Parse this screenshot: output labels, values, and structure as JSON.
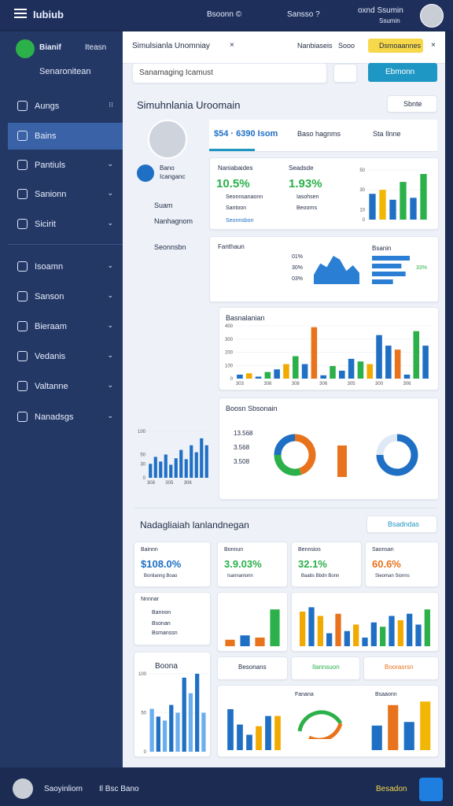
{
  "header": {
    "app": "Iubiub",
    "items": [
      "Bsoonn ©",
      "Sansso ?",
      "oxnd Ssumin"
    ],
    "sub": "Ssumin"
  },
  "sidebar": {
    "brand": "Bianif",
    "brand_right": "Iteasn",
    "search": "Senaronitean",
    "items": [
      "Aungs",
      "Bains",
      "Pantiuls",
      "Sanionn",
      "Sicirit",
      "Isoamn",
      "Sanson",
      "Bieraam",
      "Vedanis",
      "Valtanne",
      "Nanadsgs"
    ]
  },
  "tabbar": {
    "title": "Simulsianla Unomniay",
    "links": [
      "Nanbiaseis",
      "Sooo"
    ],
    "button": "Dsmoaannes"
  },
  "search": {
    "placeholder": "Sanamaging Icamust",
    "button": "Ebmonn"
  },
  "section1": {
    "title": "Simuhnlania Uroomain",
    "dropdown": "Sbnte"
  },
  "profile": {
    "name": "Bano",
    "role": "Icanganc",
    "links": [
      "Suam",
      "Nanhagnom",
      "Seonnsbn"
    ]
  },
  "tabs": [
    "$54 · 6390 Isom",
    "Baso hagnms",
    "Sta Ilnne"
  ],
  "kpi": {
    "labels": [
      "Naniabaides",
      "Seadsde"
    ],
    "values": [
      "10.5%",
      "1.93%"
    ],
    "legend": [
      "Seonnsanaonn",
      "Iasohsen",
      "Santoon",
      "Beoorns"
    ],
    "link": "Seonnsbon"
  },
  "mid": {
    "title": "Fanthaun",
    "right_title": "Bsanin",
    "legend": [
      "01%",
      "30%",
      "03%"
    ],
    "pct": "33%"
  },
  "main_chart_title": "Basnalanian",
  "donut_title": "Boosn Sbsonain",
  "donut_legend": [
    "13.568",
    "3.568",
    "3.508"
  ],
  "section2": {
    "title": "Nadagliaiah lanlandnegan",
    "button": "Bsadndas"
  },
  "kpi2": [
    {
      "label": "Bainnn",
      "value": "$108.0%",
      "note": "Bonlianng Boao"
    },
    {
      "label": "Bonnun",
      "value": "3.9.03%",
      "note": "Isannanionn"
    },
    {
      "label": "Bennsios",
      "value": "32.1%",
      "note": "Baabs Bbdn Bonn"
    },
    {
      "label": "Saonsan",
      "value": "60.6%",
      "note": "Sieoman Sionns"
    }
  ],
  "list": {
    "title": "Nnnnar",
    "items": [
      "Bannon",
      "Bsonan",
      "Bsmanssn"
    ]
  },
  "row3": {
    "left": "Boona",
    "buttons": [
      "Besonans",
      "Ilannsuon",
      "Boorasrsn"
    ]
  },
  "bottom_titles": [
    "Fanana",
    "Bsaaonn"
  ],
  "footer": {
    "name": "Saoyinliom",
    "mid": "Il Bsc Bano",
    "right": "Besadon"
  },
  "charts": {
    "kpi_bar": {
      "type": "bar",
      "ylim": [
        0,
        50
      ],
      "yticks": [
        0,
        10,
        30,
        50
      ],
      "values": [
        26,
        30,
        20,
        38,
        22,
        46
      ],
      "colors": [
        "#1f6fc4",
        "#f2b705",
        "#1f6fc4",
        "#2bb04a",
        "#1f6fc4",
        "#2bb04a"
      ]
    },
    "area": {
      "type": "area",
      "color": "#2a7fd4",
      "values": [
        10,
        22,
        18,
        30,
        26,
        14,
        20,
        12
      ]
    },
    "hbar": {
      "type": "hbar",
      "color": "#2a7fd4",
      "values": [
        9,
        7,
        8,
        5
      ]
    },
    "main_bar": {
      "type": "bar",
      "ylim": [
        0,
        400
      ],
      "yticks": [
        0,
        100,
        200,
        300,
        400
      ],
      "categories": [
        "303",
        null,
        null,
        "306",
        null,
        null,
        "308",
        null,
        null,
        "306",
        null,
        null,
        "305",
        null,
        null,
        "300",
        null,
        null,
        "306",
        null,
        null
      ],
      "values": [
        30,
        40,
        15,
        50,
        70,
        110,
        170,
        110,
        390,
        25,
        95,
        60,
        150,
        130,
        110,
        330,
        250,
        220,
        30,
        360,
        250
      ],
      "colors": [
        "#1f6fc4",
        "#f2a900",
        "#1f6fc4",
        "#2bb04a",
        "#1f6fc4",
        "#f2a900",
        "#2bb04a",
        "#1f6fc4",
        "#e8731c",
        "#1f6fc4",
        "#2bb04a",
        "#1f6fc4",
        "#1f6fc4",
        "#2bb04a",
        "#f2a900",
        "#1f6fc4",
        "#1f6fc4",
        "#e8731c",
        "#1f6fc4",
        "#2bb04a",
        "#1f6fc4"
      ]
    },
    "left_bar": {
      "type": "bar",
      "ylim": [
        0,
        100
      ],
      "yticks": [
        0,
        30,
        50,
        100
      ],
      "categories": [
        "308",
        null,
        null,
        "305",
        null,
        null,
        "306",
        null,
        null,
        null
      ],
      "values": [
        30,
        45,
        35,
        50,
        28,
        42,
        60,
        40,
        70,
        55,
        85,
        70
      ],
      "colors": [
        "#1f6fc4",
        "#1f6fc4",
        "#1f6fc4",
        "#1f6fc4",
        "#1f6fc4",
        "#1f6fc4",
        "#1f6fc4",
        "#1f6fc4",
        "#1f6fc4",
        "#1f6fc4",
        "#1f6fc4",
        "#1f6fc4"
      ]
    },
    "donut": {
      "type": "pie",
      "values": [
        45,
        30,
        25
      ],
      "colors": [
        "#e8731c",
        "#2bb04a",
        "#1f6fc4"
      ]
    },
    "donut2": {
      "type": "pie",
      "values": [
        75,
        25
      ],
      "colors": [
        "#1f6fc4",
        "#dfe8f5"
      ]
    },
    "card_bar": {
      "type": "bar",
      "ylim": [
        0,
        40
      ],
      "values": [
        6,
        10,
        8,
        34
      ],
      "colors": [
        "#e8731c",
        "#1f6fc4",
        "#e8731c",
        "#2bb04a"
      ]
    },
    "wide_bar": {
      "type": "bar",
      "ylim": [
        0,
        40
      ],
      "values": [
        32,
        36,
        28,
        12,
        30,
        14,
        20,
        8,
        22,
        18,
        28,
        24,
        30,
        20,
        34
      ],
      "colors": [
        "#f2a900",
        "#1f6fc4",
        "#f2a900",
        "#1f6fc4",
        "#e8731c",
        "#1f6fc4",
        "#f2a900",
        "#1f6fc4",
        "#1f6fc4",
        "#2bb04a",
        "#1f6fc4",
        "#f2a900",
        "#1f6fc4",
        "#1f6fc4",
        "#2bb04a"
      ]
    },
    "bl_bar": {
      "type": "bar",
      "ylim": [
        0,
        100
      ],
      "yticks": [
        0,
        50,
        100
      ],
      "values": [
        55,
        45,
        40,
        60,
        50,
        95,
        75,
        100,
        50
      ],
      "colors": [
        "#6aaef0",
        "#1f6fc4",
        "#6aaef0",
        "#1f6fc4",
        "#6aaef0",
        "#1f6fc4",
        "#6aaef0",
        "#1f6fc4",
        "#6aaef0"
      ]
    },
    "bm_bar": {
      "type": "bar",
      "ylim": [
        0,
        60
      ],
      "values": [
        48,
        30,
        18,
        28,
        40,
        40
      ],
      "colors": [
        "#1f6fc4",
        "#1f6fc4",
        "#1f6fc4",
        "#f2a900",
        "#1f6fc4",
        "#f2a900"
      ]
    },
    "br_bar": {
      "type": "bar",
      "ylim": [
        0,
        100
      ],
      "values": [
        48,
        88,
        55,
        95
      ],
      "colors": [
        "#1f6fc4",
        "#e8731c",
        "#1f6fc4",
        "#f2b705"
      ]
    }
  }
}
